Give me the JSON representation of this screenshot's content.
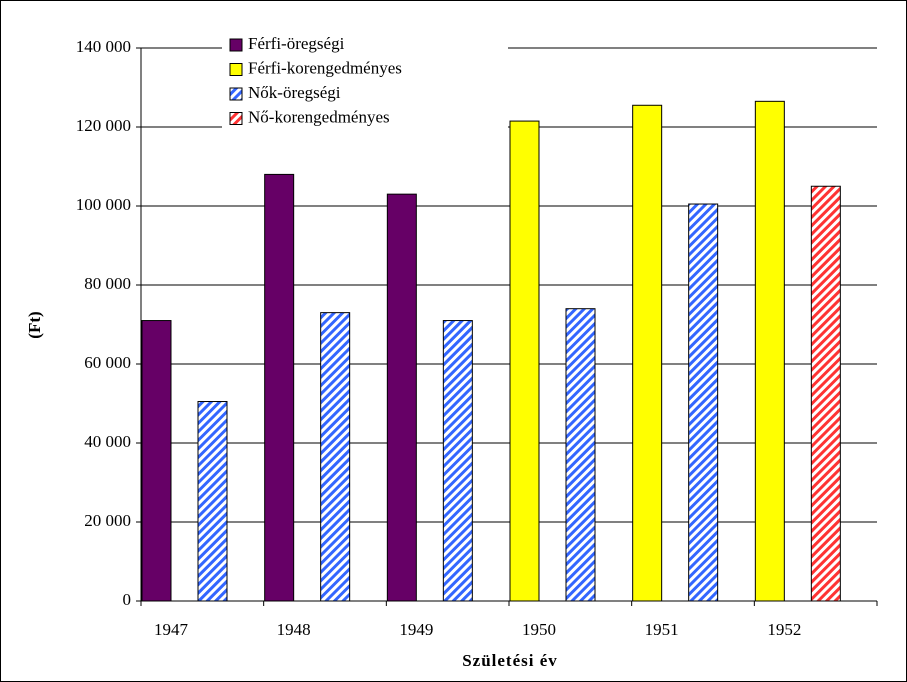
{
  "chart_data": {
    "type": "bar",
    "x_label": "Születési év",
    "y_label": "(Ft)",
    "categories": [
      "1947",
      "1948",
      "1949",
      "1950",
      "1951",
      "1952"
    ],
    "series": [
      {
        "name": "Férfi-öregségi",
        "color": "#660066",
        "hatch": false,
        "values": [
          71000,
          108000,
          103000,
          null,
          null,
          null
        ]
      },
      {
        "name": "Férfi-korengedményes",
        "color": "#ffff00",
        "hatch": false,
        "values": [
          null,
          null,
          null,
          121500,
          125500,
          126500
        ]
      },
      {
        "name": "Nők-öregségi",
        "color": "#3366ff",
        "hatch": true,
        "values": [
          50500,
          73000,
          71000,
          74000,
          100500,
          null
        ]
      },
      {
        "name": "Nő-korengedményes",
        "color": "#ff3333",
        "hatch": true,
        "values": [
          null,
          null,
          null,
          null,
          null,
          105000
        ]
      }
    ],
    "ylim": [
      0,
      140000
    ],
    "yticks": [
      {
        "value": 0,
        "label": "0"
      },
      {
        "value": 20000,
        "label": "20 000"
      },
      {
        "value": 40000,
        "label": "40 000"
      },
      {
        "value": 60000,
        "label": "60 000"
      },
      {
        "value": 80000,
        "label": "80 000"
      },
      {
        "value": 100000,
        "label": "100 000"
      },
      {
        "value": 120000,
        "label": "120 000"
      },
      {
        "value": 140000,
        "label": "140 000"
      }
    ],
    "grid": true,
    "legend": "top-left"
  }
}
